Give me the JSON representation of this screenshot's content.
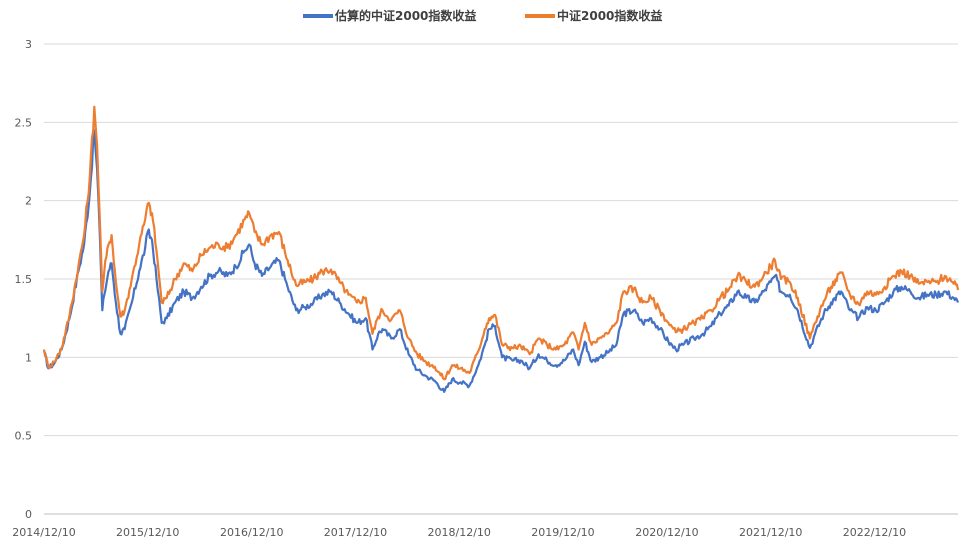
{
  "chart_data": {
    "type": "line",
    "title": "",
    "xlabel": "",
    "ylabel": "",
    "ylim": [
      0,
      3
    ],
    "y_ticks": [
      "0",
      "0.5",
      "1",
      "1.5",
      "2",
      "2.5",
      "3"
    ],
    "x_ticks": [
      "2014/12/10",
      "2015/12/10",
      "2016/12/10",
      "2017/12/10",
      "2018/12/10",
      "2019/12/10",
      "2020/12/10",
      "2021/12/10",
      "2022/12/10"
    ],
    "x_range": [
      "2014-12-10",
      "2023-09-30"
    ],
    "grid": "horizontal",
    "legend_position": "top",
    "series": [
      {
        "name": "估算的中证2000指数收益",
        "color": "#4472C4",
        "points": [
          [
            "2014-12-10",
            1.04
          ],
          [
            "2014-12-25",
            0.93
          ],
          [
            "2015-01-15",
            0.96
          ],
          [
            "2015-02-10",
            1.05
          ],
          [
            "2015-03-10",
            1.25
          ],
          [
            "2015-04-10",
            1.55
          ],
          [
            "2015-04-30",
            1.72
          ],
          [
            "2015-05-20",
            2.05
          ],
          [
            "2015-06-05",
            2.45
          ],
          [
            "2015-06-15",
            2.2
          ],
          [
            "2015-06-25",
            1.75
          ],
          [
            "2015-07-03",
            1.3
          ],
          [
            "2015-07-10",
            1.4
          ],
          [
            "2015-07-25",
            1.55
          ],
          [
            "2015-08-05",
            1.6
          ],
          [
            "2015-08-20",
            1.35
          ],
          [
            "2015-09-05",
            1.15
          ],
          [
            "2015-09-20",
            1.18
          ],
          [
            "2015-10-15",
            1.35
          ],
          [
            "2015-11-10",
            1.55
          ],
          [
            "2015-12-01",
            1.7
          ],
          [
            "2015-12-10",
            1.8
          ],
          [
            "2015-12-25",
            1.75
          ],
          [
            "2016-01-10",
            1.5
          ],
          [
            "2016-01-28",
            1.22
          ],
          [
            "2016-02-15",
            1.25
          ],
          [
            "2016-03-15",
            1.35
          ],
          [
            "2016-04-15",
            1.42
          ],
          [
            "2016-05-15",
            1.38
          ],
          [
            "2016-06-15",
            1.45
          ],
          [
            "2016-07-15",
            1.52
          ],
          [
            "2016-08-15",
            1.55
          ],
          [
            "2016-09-15",
            1.52
          ],
          [
            "2016-10-15",
            1.58
          ],
          [
            "2016-11-15",
            1.68
          ],
          [
            "2016-12-01",
            1.72
          ],
          [
            "2016-12-20",
            1.6
          ],
          [
            "2017-01-15",
            1.52
          ],
          [
            "2017-02-15",
            1.58
          ],
          [
            "2017-03-15",
            1.62
          ],
          [
            "2017-04-15",
            1.45
          ],
          [
            "2017-05-15",
            1.3
          ],
          [
            "2017-06-15",
            1.32
          ],
          [
            "2017-07-15",
            1.35
          ],
          [
            "2017-08-15",
            1.4
          ],
          [
            "2017-09-15",
            1.42
          ],
          [
            "2017-10-15",
            1.35
          ],
          [
            "2017-11-15",
            1.28
          ],
          [
            "2017-12-15",
            1.22
          ],
          [
            "2018-01-15",
            1.25
          ],
          [
            "2018-02-08",
            1.05
          ],
          [
            "2018-02-28",
            1.15
          ],
          [
            "2018-03-15",
            1.18
          ],
          [
            "2018-04-15",
            1.12
          ],
          [
            "2018-05-15",
            1.18
          ],
          [
            "2018-06-15",
            1.02
          ],
          [
            "2018-07-15",
            0.92
          ],
          [
            "2018-08-15",
            0.88
          ],
          [
            "2018-09-15",
            0.85
          ],
          [
            "2018-10-18",
            0.78
          ],
          [
            "2018-11-15",
            0.86
          ],
          [
            "2018-12-15",
            0.84
          ],
          [
            "2019-01-15",
            0.82
          ],
          [
            "2019-02-15",
            0.95
          ],
          [
            "2019-03-10",
            1.08
          ],
          [
            "2019-03-25",
            1.18
          ],
          [
            "2019-04-15",
            1.2
          ],
          [
            "2019-05-10",
            1.0
          ],
          [
            "2019-06-15",
            0.98
          ],
          [
            "2019-07-15",
            0.98
          ],
          [
            "2019-08-15",
            0.93
          ],
          [
            "2019-09-15",
            1.02
          ],
          [
            "2019-10-15",
            0.98
          ],
          [
            "2019-11-15",
            0.95
          ],
          [
            "2019-12-15",
            0.98
          ],
          [
            "2020-01-15",
            1.05
          ],
          [
            "2020-02-03",
            0.95
          ],
          [
            "2020-02-25",
            1.1
          ],
          [
            "2020-03-20",
            0.97
          ],
          [
            "2020-04-15",
            1.0
          ],
          [
            "2020-05-15",
            1.03
          ],
          [
            "2020-06-15",
            1.08
          ],
          [
            "2020-07-10",
            1.28
          ],
          [
            "2020-08-15",
            1.3
          ],
          [
            "2020-09-15",
            1.22
          ],
          [
            "2020-10-15",
            1.25
          ],
          [
            "2020-11-15",
            1.18
          ],
          [
            "2020-12-15",
            1.1
          ],
          [
            "2021-01-10",
            1.05
          ],
          [
            "2021-02-05",
            1.08
          ],
          [
            "2021-03-15",
            1.12
          ],
          [
            "2021-04-15",
            1.15
          ],
          [
            "2021-05-15",
            1.2
          ],
          [
            "2021-06-15",
            1.28
          ],
          [
            "2021-07-15",
            1.33
          ],
          [
            "2021-08-15",
            1.42
          ],
          [
            "2021-09-15",
            1.38
          ],
          [
            "2021-10-15",
            1.35
          ],
          [
            "2021-11-15",
            1.42
          ],
          [
            "2021-12-10",
            1.48
          ],
          [
            "2021-12-25",
            1.52
          ],
          [
            "2022-01-15",
            1.42
          ],
          [
            "2022-02-15",
            1.4
          ],
          [
            "2022-03-15",
            1.3
          ],
          [
            "2022-04-27",
            1.06
          ],
          [
            "2022-05-15",
            1.15
          ],
          [
            "2022-06-15",
            1.28
          ],
          [
            "2022-07-10",
            1.35
          ],
          [
            "2022-08-15",
            1.42
          ],
          [
            "2022-09-15",
            1.3
          ],
          [
            "2022-10-15",
            1.25
          ],
          [
            "2022-11-15",
            1.32
          ],
          [
            "2022-12-15",
            1.3
          ],
          [
            "2023-01-15",
            1.35
          ],
          [
            "2023-02-15",
            1.42
          ],
          [
            "2023-03-15",
            1.45
          ],
          [
            "2023-04-15",
            1.42
          ],
          [
            "2023-05-15",
            1.38
          ],
          [
            "2023-06-15",
            1.4
          ],
          [
            "2023-07-15",
            1.4
          ],
          [
            "2023-08-15",
            1.42
          ],
          [
            "2023-09-15",
            1.38
          ],
          [
            "2023-09-30",
            1.35
          ]
        ]
      },
      {
        "name": "中证2000指数收益",
        "color": "#ED7D31",
        "points": [
          [
            "2014-12-10",
            1.05
          ],
          [
            "2014-12-25",
            0.94
          ],
          [
            "2015-01-15",
            0.97
          ],
          [
            "2015-02-10",
            1.06
          ],
          [
            "2015-03-10",
            1.27
          ],
          [
            "2015-04-10",
            1.58
          ],
          [
            "2015-04-30",
            1.78
          ],
          [
            "2015-05-20",
            2.15
          ],
          [
            "2015-06-05",
            2.6
          ],
          [
            "2015-06-15",
            2.35
          ],
          [
            "2015-06-25",
            1.85
          ],
          [
            "2015-07-03",
            1.42
          ],
          [
            "2015-07-10",
            1.55
          ],
          [
            "2015-07-25",
            1.72
          ],
          [
            "2015-08-05",
            1.78
          ],
          [
            "2015-08-20",
            1.48
          ],
          [
            "2015-09-05",
            1.26
          ],
          [
            "2015-09-20",
            1.3
          ],
          [
            "2015-10-15",
            1.5
          ],
          [
            "2015-11-10",
            1.72
          ],
          [
            "2015-12-01",
            1.88
          ],
          [
            "2015-12-10",
            1.98
          ],
          [
            "2015-12-25",
            1.92
          ],
          [
            "2016-01-10",
            1.68
          ],
          [
            "2016-01-28",
            1.35
          ],
          [
            "2016-02-15",
            1.38
          ],
          [
            "2016-03-15",
            1.5
          ],
          [
            "2016-04-15",
            1.6
          ],
          [
            "2016-05-15",
            1.55
          ],
          [
            "2016-06-15",
            1.65
          ],
          [
            "2016-07-15",
            1.7
          ],
          [
            "2016-08-15",
            1.72
          ],
          [
            "2016-09-15",
            1.7
          ],
          [
            "2016-10-15",
            1.78
          ],
          [
            "2016-11-15",
            1.88
          ],
          [
            "2016-12-01",
            1.92
          ],
          [
            "2016-12-20",
            1.8
          ],
          [
            "2017-01-15",
            1.72
          ],
          [
            "2017-02-15",
            1.78
          ],
          [
            "2017-03-15",
            1.8
          ],
          [
            "2017-04-15",
            1.62
          ],
          [
            "2017-05-15",
            1.46
          ],
          [
            "2017-06-15",
            1.48
          ],
          [
            "2017-07-15",
            1.5
          ],
          [
            "2017-08-15",
            1.55
          ],
          [
            "2017-09-15",
            1.56
          ],
          [
            "2017-10-15",
            1.48
          ],
          [
            "2017-11-15",
            1.4
          ],
          [
            "2017-12-15",
            1.35
          ],
          [
            "2018-01-15",
            1.38
          ],
          [
            "2018-02-08",
            1.15
          ],
          [
            "2018-02-28",
            1.26
          ],
          [
            "2018-03-15",
            1.3
          ],
          [
            "2018-04-15",
            1.24
          ],
          [
            "2018-05-15",
            1.3
          ],
          [
            "2018-06-15",
            1.12
          ],
          [
            "2018-07-15",
            1.02
          ],
          [
            "2018-08-15",
            0.97
          ],
          [
            "2018-09-15",
            0.94
          ],
          [
            "2018-10-18",
            0.86
          ],
          [
            "2018-11-15",
            0.95
          ],
          [
            "2018-12-15",
            0.93
          ],
          [
            "2019-01-15",
            0.9
          ],
          [
            "2019-02-15",
            1.04
          ],
          [
            "2019-03-10",
            1.18
          ],
          [
            "2019-03-25",
            1.25
          ],
          [
            "2019-04-15",
            1.27
          ],
          [
            "2019-05-10",
            1.08
          ],
          [
            "2019-06-15",
            1.06
          ],
          [
            "2019-07-15",
            1.07
          ],
          [
            "2019-08-15",
            1.02
          ],
          [
            "2019-09-15",
            1.12
          ],
          [
            "2019-10-15",
            1.08
          ],
          [
            "2019-11-15",
            1.05
          ],
          [
            "2019-12-15",
            1.08
          ],
          [
            "2020-01-15",
            1.16
          ],
          [
            "2020-02-03",
            1.05
          ],
          [
            "2020-02-25",
            1.22
          ],
          [
            "2020-03-20",
            1.08
          ],
          [
            "2020-04-15",
            1.12
          ],
          [
            "2020-05-15",
            1.15
          ],
          [
            "2020-06-15",
            1.22
          ],
          [
            "2020-07-10",
            1.42
          ],
          [
            "2020-08-15",
            1.44
          ],
          [
            "2020-09-15",
            1.35
          ],
          [
            "2020-10-15",
            1.38
          ],
          [
            "2020-11-15",
            1.3
          ],
          [
            "2020-12-15",
            1.22
          ],
          [
            "2021-01-10",
            1.16
          ],
          [
            "2021-02-05",
            1.18
          ],
          [
            "2021-03-15",
            1.22
          ],
          [
            "2021-04-15",
            1.25
          ],
          [
            "2021-05-15",
            1.3
          ],
          [
            "2021-06-15",
            1.38
          ],
          [
            "2021-07-15",
            1.43
          ],
          [
            "2021-08-15",
            1.52
          ],
          [
            "2021-09-15",
            1.48
          ],
          [
            "2021-10-15",
            1.45
          ],
          [
            "2021-11-15",
            1.52
          ],
          [
            "2021-12-10",
            1.58
          ],
          [
            "2021-12-25",
            1.62
          ],
          [
            "2022-01-15",
            1.5
          ],
          [
            "2022-02-15",
            1.48
          ],
          [
            "2022-03-15",
            1.38
          ],
          [
            "2022-04-27",
            1.12
          ],
          [
            "2022-05-15",
            1.22
          ],
          [
            "2022-06-15",
            1.36
          ],
          [
            "2022-07-10",
            1.45
          ],
          [
            "2022-08-15",
            1.54
          ],
          [
            "2022-09-15",
            1.4
          ],
          [
            "2022-10-15",
            1.34
          ],
          [
            "2022-11-15",
            1.42
          ],
          [
            "2022-12-15",
            1.4
          ],
          [
            "2023-01-15",
            1.45
          ],
          [
            "2023-02-15",
            1.52
          ],
          [
            "2023-03-15",
            1.55
          ],
          [
            "2023-04-15",
            1.52
          ],
          [
            "2023-05-15",
            1.47
          ],
          [
            "2023-06-15",
            1.48
          ],
          [
            "2023-07-15",
            1.48
          ],
          [
            "2023-08-15",
            1.52
          ],
          [
            "2023-09-15",
            1.47
          ],
          [
            "2023-09-30",
            1.43
          ]
        ]
      }
    ]
  }
}
